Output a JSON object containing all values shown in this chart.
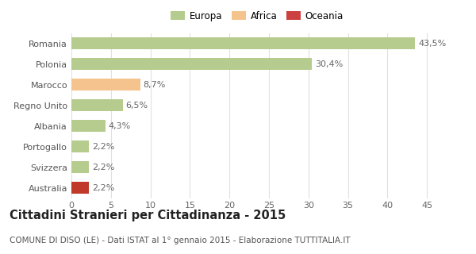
{
  "categories": [
    "Romania",
    "Polonia",
    "Marocco",
    "Regno Unito",
    "Albania",
    "Portogallo",
    "Svizzera",
    "Australia"
  ],
  "values": [
    43.5,
    30.4,
    8.7,
    6.5,
    4.3,
    2.2,
    2.2,
    2.2
  ],
  "labels": [
    "43,5%",
    "30,4%",
    "8,7%",
    "6,5%",
    "4,3%",
    "2,2%",
    "2,2%",
    "2,2%"
  ],
  "bar_colors": [
    "#b5cc8e",
    "#b5cc8e",
    "#f5c48e",
    "#b5cc8e",
    "#b5cc8e",
    "#b5cc8e",
    "#b5cc8e",
    "#c0392b"
  ],
  "legend_items": [
    {
      "label": "Europa",
      "color": "#b5cc8e"
    },
    {
      "label": "Africa",
      "color": "#f5c48e"
    },
    {
      "label": "Oceania",
      "color": "#cd4040"
    }
  ],
  "title": "Cittadini Stranieri per Cittadinanza - 2015",
  "subtitle": "COMUNE DI DISO (LE) - Dati ISTAT al 1° gennaio 2015 - Elaborazione TUTTITALIA.IT",
  "xlim": [
    0,
    47
  ],
  "xticks": [
    0,
    5,
    10,
    15,
    20,
    25,
    30,
    35,
    40,
    45
  ],
  "background_color": "#ffffff",
  "grid_color": "#e0e0e0",
  "title_fontsize": 10.5,
  "subtitle_fontsize": 7.5,
  "label_fontsize": 8,
  "tick_fontsize": 8,
  "bar_height": 0.55
}
